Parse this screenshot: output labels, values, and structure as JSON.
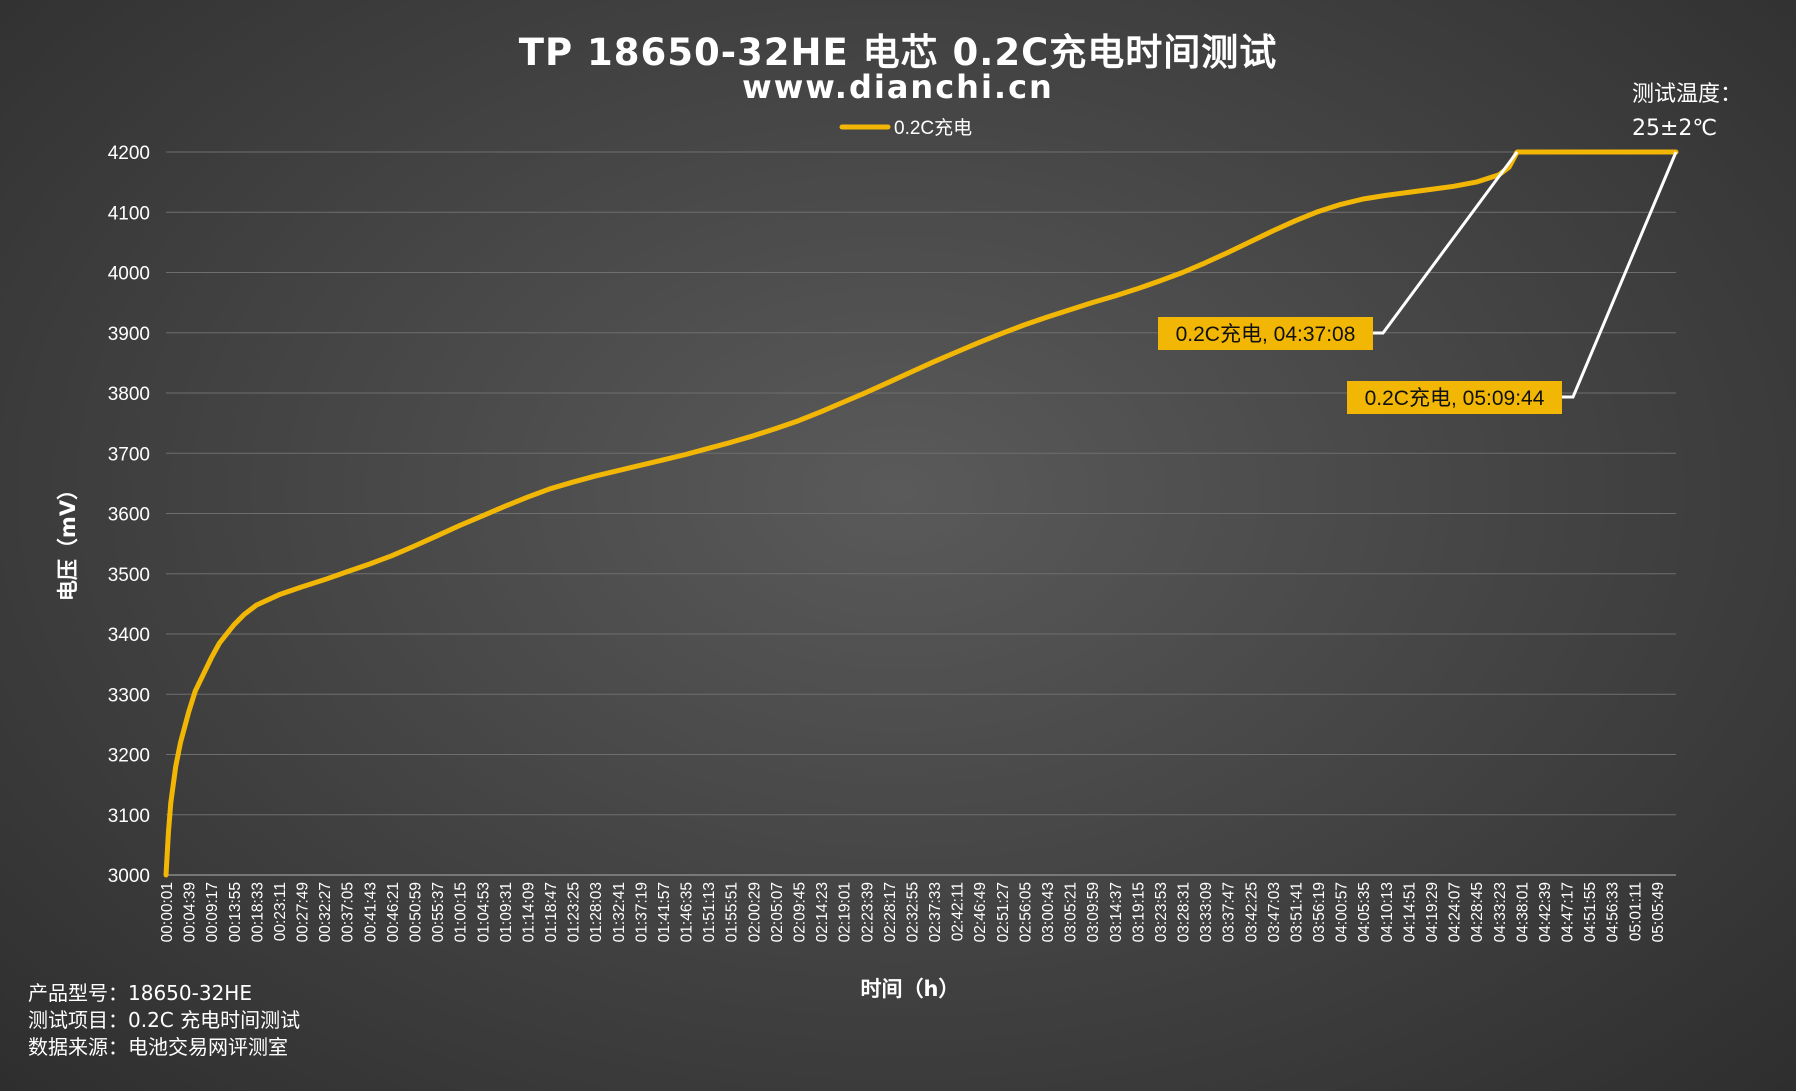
{
  "header": {
    "title": "TP 18650-32HE 电芯 0.2C充电时间测试",
    "subtitle": "www.dianchi.cn"
  },
  "temperature_note": {
    "line1": "测试温度：",
    "line2": "25±2℃"
  },
  "footer": {
    "line1": "产品型号：18650-32HE",
    "line2": "测试项目：0.2C 充电时间测试",
    "line3": "数据来源：电池交易网评测室"
  },
  "colors": {
    "series": "#f2b705",
    "leader": "#ffffff",
    "grid": "#6e6e6e"
  },
  "chart_data": {
    "type": "line",
    "title": "TP 18650-32HE 电芯 0.2C充电时间测试",
    "subtitle": "www.dianchi.cn",
    "xlabel": "时间（h）",
    "ylabel": "电压（mV）",
    "ylim": [
      3000,
      4200
    ],
    "yticks": [
      3000,
      3100,
      3200,
      3300,
      3400,
      3500,
      3600,
      3700,
      3800,
      3900,
      4000,
      4100,
      4200
    ],
    "xlim": [
      "00:00:01",
      "05:09:44"
    ],
    "xticks": [
      "00:00:01",
      "00:04:39",
      "00:09:17",
      "00:13:55",
      "00:18:33",
      "00:23:11",
      "00:27:49",
      "00:32:27",
      "00:37:05",
      "00:41:43",
      "00:46:21",
      "00:50:59",
      "00:55:37",
      "01:00:15",
      "01:04:53",
      "01:09:31",
      "01:14:09",
      "01:18:47",
      "01:23:25",
      "01:28:03",
      "01:32:41",
      "01:37:19",
      "01:41:57",
      "01:46:35",
      "01:51:13",
      "01:55:51",
      "02:00:29",
      "02:05:07",
      "02:09:45",
      "02:14:23",
      "02:19:01",
      "02:23:39",
      "02:28:17",
      "02:32:55",
      "02:37:33",
      "02:42:11",
      "02:46:49",
      "02:51:27",
      "02:56:05",
      "03:00:43",
      "03:05:21",
      "03:09:59",
      "03:14:37",
      "03:19:15",
      "03:23:53",
      "03:28:31",
      "03:33:09",
      "03:37:47",
      "03:42:25",
      "03:47:03",
      "03:51:41",
      "03:56:19",
      "04:00:57",
      "04:05:35",
      "04:10:13",
      "04:14:51",
      "04:19:29",
      "04:24:07",
      "04:28:45",
      "04:33:23",
      "04:38:01",
      "04:42:39",
      "04:47:17",
      "04:51:55",
      "04:56:33",
      "05:01:11",
      "05:05:49"
    ],
    "grid": true,
    "legend": "top-center",
    "series": [
      {
        "name": "0.2C充电",
        "points": [
          [
            "00:00:01",
            3000
          ],
          [
            "00:00:30",
            3070
          ],
          [
            "00:01:00",
            3120
          ],
          [
            "00:02:00",
            3180
          ],
          [
            "00:03:00",
            3220
          ],
          [
            "00:04:39",
            3270
          ],
          [
            "00:06:00",
            3305
          ],
          [
            "00:09:17",
            3360
          ],
          [
            "00:11:00",
            3385
          ],
          [
            "00:13:55",
            3415
          ],
          [
            "00:16:00",
            3432
          ],
          [
            "00:18:33",
            3448
          ],
          [
            "00:23:11",
            3465
          ],
          [
            "00:27:49",
            3478
          ],
          [
            "00:32:27",
            3490
          ],
          [
            "00:37:05",
            3503
          ],
          [
            "00:41:43",
            3516
          ],
          [
            "00:46:21",
            3530
          ],
          [
            "00:50:59",
            3546
          ],
          [
            "00:55:37",
            3563
          ],
          [
            "01:00:15",
            3580
          ],
          [
            "01:04:53",
            3596
          ],
          [
            "01:09:31",
            3612
          ],
          [
            "01:14:09",
            3627
          ],
          [
            "01:18:47",
            3641
          ],
          [
            "01:23:25",
            3652
          ],
          [
            "01:28:03",
            3662
          ],
          [
            "01:32:41",
            3671
          ],
          [
            "01:37:19",
            3680
          ],
          [
            "01:41:57",
            3689
          ],
          [
            "01:46:35",
            3698
          ],
          [
            "01:51:13",
            3708
          ],
          [
            "01:55:51",
            3718
          ],
          [
            "02:00:29",
            3729
          ],
          [
            "02:05:07",
            3741
          ],
          [
            "02:09:45",
            3754
          ],
          [
            "02:14:23",
            3769
          ],
          [
            "02:19:01",
            3785
          ],
          [
            "02:23:39",
            3801
          ],
          [
            "02:28:17",
            3818
          ],
          [
            "02:32:55",
            3835
          ],
          [
            "02:37:33",
            3852
          ],
          [
            "02:42:11",
            3868
          ],
          [
            "02:46:49",
            3884
          ],
          [
            "02:51:27",
            3899
          ],
          [
            "02:56:05",
            3913
          ],
          [
            "03:00:43",
            3926
          ],
          [
            "03:05:21",
            3938
          ],
          [
            "03:09:59",
            3950
          ],
          [
            "03:14:37",
            3961
          ],
          [
            "03:19:15",
            3973
          ],
          [
            "03:23:53",
            3986
          ],
          [
            "03:28:31",
            4000
          ],
          [
            "03:33:09",
            4016
          ],
          [
            "03:37:47",
            4033
          ],
          [
            "03:42:25",
            4051
          ],
          [
            "03:47:03",
            4069
          ],
          [
            "03:51:41",
            4086
          ],
          [
            "03:56:19",
            4101
          ],
          [
            "04:00:57",
            4113
          ],
          [
            "04:05:35",
            4122
          ],
          [
            "04:10:13",
            4128
          ],
          [
            "04:14:51",
            4133
          ],
          [
            "04:19:29",
            4138
          ],
          [
            "04:24:07",
            4143
          ],
          [
            "04:28:45",
            4150
          ],
          [
            "04:33:23",
            4162
          ],
          [
            "04:35:30",
            4175
          ],
          [
            "04:37:08",
            4200
          ],
          [
            "05:09:44",
            4200
          ]
        ]
      }
    ],
    "annotations": [
      {
        "text": "0.2C充电, 04:37:08",
        "x": "04:37:08",
        "y": 4200
      },
      {
        "text": "0.2C充电, 05:09:44",
        "x": "05:09:44",
        "y": 4200
      }
    ]
  }
}
